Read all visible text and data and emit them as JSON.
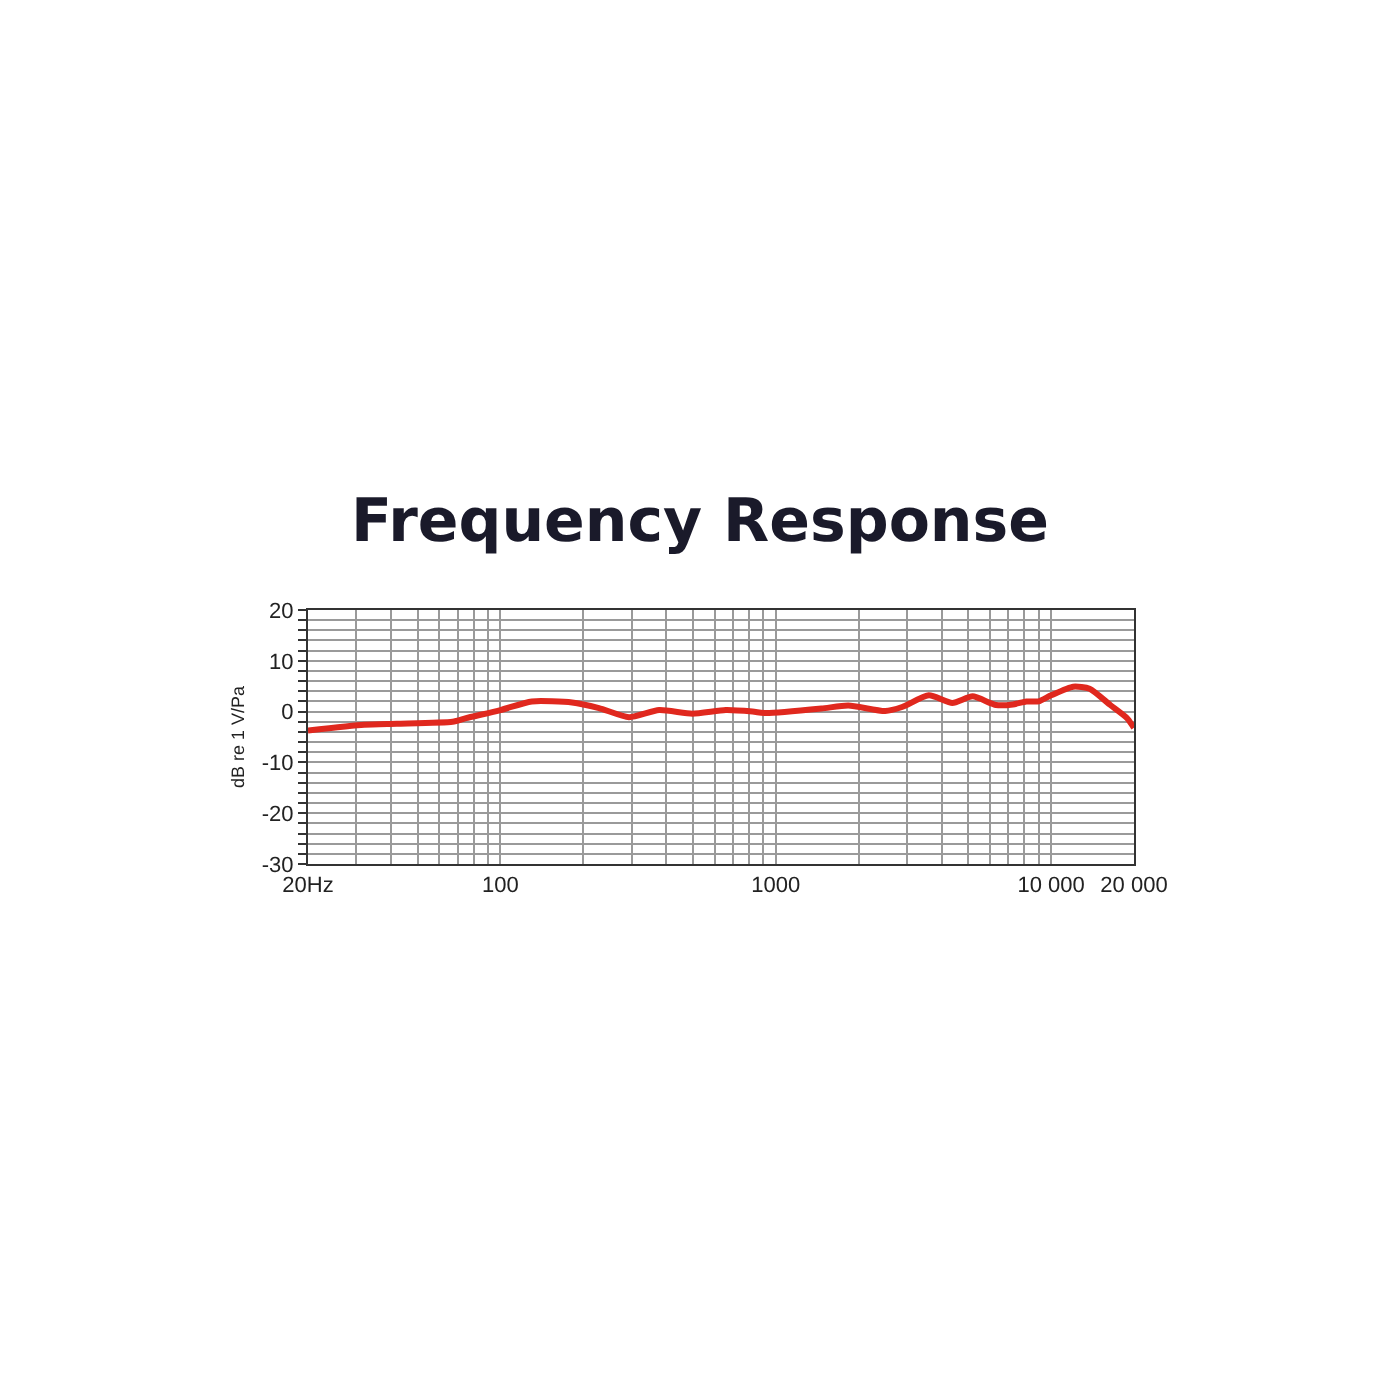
{
  "chart_data": {
    "type": "line",
    "title": "Frequency Response",
    "ylabel": "dB re 1 V/Pa",
    "x": [
      20,
      32,
      42,
      67,
      75,
      100,
      130,
      182,
      228,
      293,
      377,
      498,
      658,
      823,
      920,
      1465,
      1834,
      2496,
      2875,
      3597,
      4377,
      5185,
      6310,
      7265,
      8128,
      9000,
      10000,
      12030,
      13800,
      16400,
      18880,
      20000
    ],
    "series": [
      {
        "color": "#e0281e",
        "values": [
          -3.7,
          -2.6,
          -2.4,
          -2.0,
          -1.3,
          0.3,
          2,
          1.8,
          0.7,
          -1.1,
          0.3,
          -0.4,
          0.3,
          0,
          -0.3,
          0.6,
          1.2,
          0.1,
          0.9,
          3.2,
          1.7,
          3,
          1.3,
          1.4,
          2,
          2,
          3.2,
          4.9,
          4.5,
          1.3,
          -1.3,
          -3.2
        ]
      }
    ],
    "log": "x",
    "xlim": [
      20,
      20000
    ],
    "ylim": [
      -30,
      20
    ],
    "xticks": [
      {
        "value": 20,
        "label": "20Hz"
      },
      {
        "value": 30,
        "label": null
      },
      {
        "value": 40,
        "label": null
      },
      {
        "value": 50,
        "label": null
      },
      {
        "value": 60,
        "label": null
      },
      {
        "value": 70,
        "label": null
      },
      {
        "value": 80,
        "label": null
      },
      {
        "value": 90,
        "label": null
      },
      100,
      {
        "value": 200,
        "label": null
      },
      {
        "value": 300,
        "label": null
      },
      {
        "value": 400,
        "label": null
      },
      {
        "value": 500,
        "label": null
      },
      {
        "value": 600,
        "label": null
      },
      {
        "value": 700,
        "label": null
      },
      {
        "value": 800,
        "label": null
      },
      {
        "value": 900,
        "label": null
      },
      1000,
      {
        "value": 2000,
        "label": null
      },
      {
        "value": 3000,
        "label": null
      },
      {
        "value": 4000,
        "label": null
      },
      {
        "value": 5000,
        "label": null
      },
      {
        "value": 6000,
        "label": null
      },
      {
        "value": 7000,
        "label": null
      },
      {
        "value": 8000,
        "label": null
      },
      {
        "value": 9000,
        "label": null
      },
      {
        "value": 10000,
        "label": "10 000"
      },
      {
        "value": 20000,
        "label": "20 000"
      }
    ],
    "yticks": [
      -30,
      {
        "value": -28,
        "label": null
      },
      {
        "value": -26,
        "label": null
      },
      {
        "value": -24,
        "label": null
      },
      {
        "value": -22,
        "label": null
      },
      -20,
      {
        "value": -18,
        "label": null
      },
      {
        "value": -16,
        "label": null
      },
      {
        "value": -14,
        "label": null
      },
      {
        "value": -12,
        "label": null
      },
      -10,
      {
        "value": -8,
        "label": null
      },
      {
        "value": -6,
        "label": null
      },
      {
        "value": -4,
        "label": null
      },
      {
        "value": -2,
        "label": null
      },
      0,
      {
        "value": 2,
        "label": null
      },
      {
        "value": 4,
        "label": null
      },
      {
        "value": 6,
        "label": null
      },
      {
        "value": 8,
        "label": null
      },
      10,
      {
        "value": 12,
        "label": null
      },
      {
        "value": 14,
        "label": null
      },
      {
        "value": 16,
        "label": null
      },
      {
        "value": 18,
        "label": null
      },
      20
    ],
    "grid": true,
    "legend": false,
    "marker": "none",
    "line_style": "solid"
  }
}
